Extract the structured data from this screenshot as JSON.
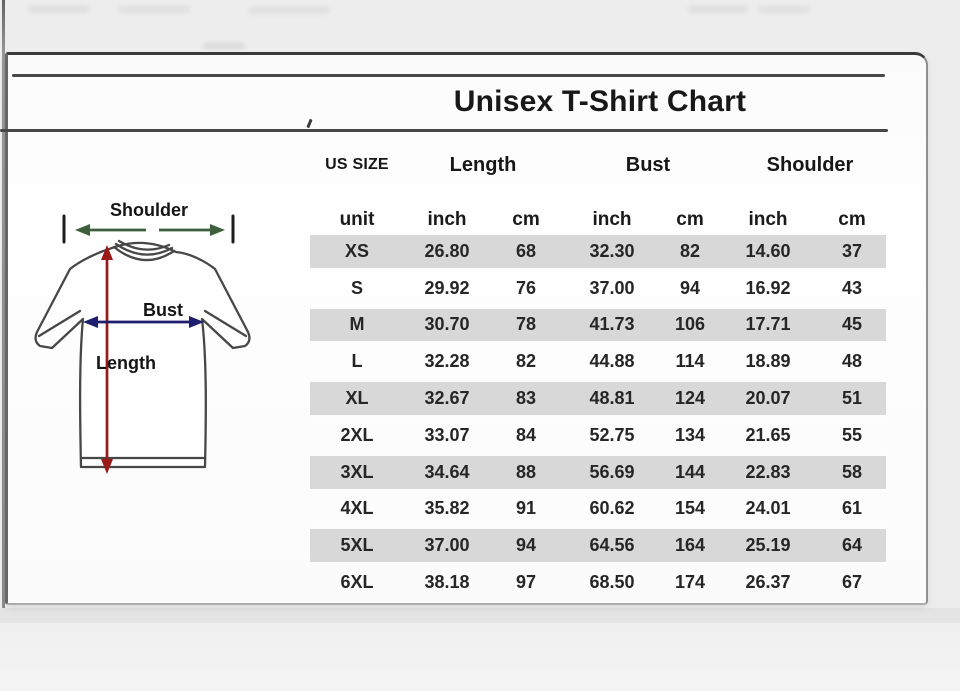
{
  "page": {
    "title": "Unisex T-Shirt Chart"
  },
  "diagram": {
    "shoulder_label": "Shoulder",
    "bust_label": "Bust",
    "length_label": "Length"
  },
  "table": {
    "group_headers": [
      "US SIZE",
      "Length",
      "Bust",
      "Shoulder"
    ],
    "unit_headers": [
      "unit",
      "inch",
      "cm",
      "inch",
      "cm",
      "inch",
      "cm"
    ]
  },
  "colors": {
    "shoulder_arrow": "#3c5f3c",
    "length_arrow": "#9a1a1a",
    "bust_arrow": "#1e1e6e",
    "stripe": "#d8d8d8"
  },
  "chart_data": {
    "type": "table",
    "title": "Unisex T-Shirt Chart",
    "column_groups": [
      "US SIZE",
      "Length",
      "Bust",
      "Shoulder"
    ],
    "columns": [
      "unit",
      "Length inch",
      "Length cm",
      "Bust inch",
      "Bust cm",
      "Shoulder inch",
      "Shoulder cm"
    ],
    "rows": [
      [
        "XS",
        "26.80",
        "68",
        "32.30",
        "82",
        "14.60",
        "37"
      ],
      [
        "S",
        "29.92",
        "76",
        "37.00",
        "94",
        "16.92",
        "43"
      ],
      [
        "M",
        "30.70",
        "78",
        "41.73",
        "106",
        "17.71",
        "45"
      ],
      [
        "L",
        "32.28",
        "82",
        "44.88",
        "114",
        "18.89",
        "48"
      ],
      [
        "XL",
        "32.67",
        "83",
        "48.81",
        "124",
        "20.07",
        "51"
      ],
      [
        "2XL",
        "33.07",
        "84",
        "52.75",
        "134",
        "21.65",
        "55"
      ],
      [
        "3XL",
        "34.64",
        "88",
        "56.69",
        "144",
        "22.83",
        "58"
      ],
      [
        "4XL",
        "35.82",
        "91",
        "60.62",
        "154",
        "24.01",
        "61"
      ],
      [
        "5XL",
        "37.00",
        "94",
        "64.56",
        "164",
        "25.19",
        "64"
      ],
      [
        "6XL",
        "38.18",
        "97",
        "68.50",
        "174",
        "26.37",
        "67"
      ]
    ],
    "striped_rows": [
      "XS",
      "M",
      "XL",
      "3XL",
      "5XL"
    ],
    "legend_position": "none",
    "grid": false
  }
}
